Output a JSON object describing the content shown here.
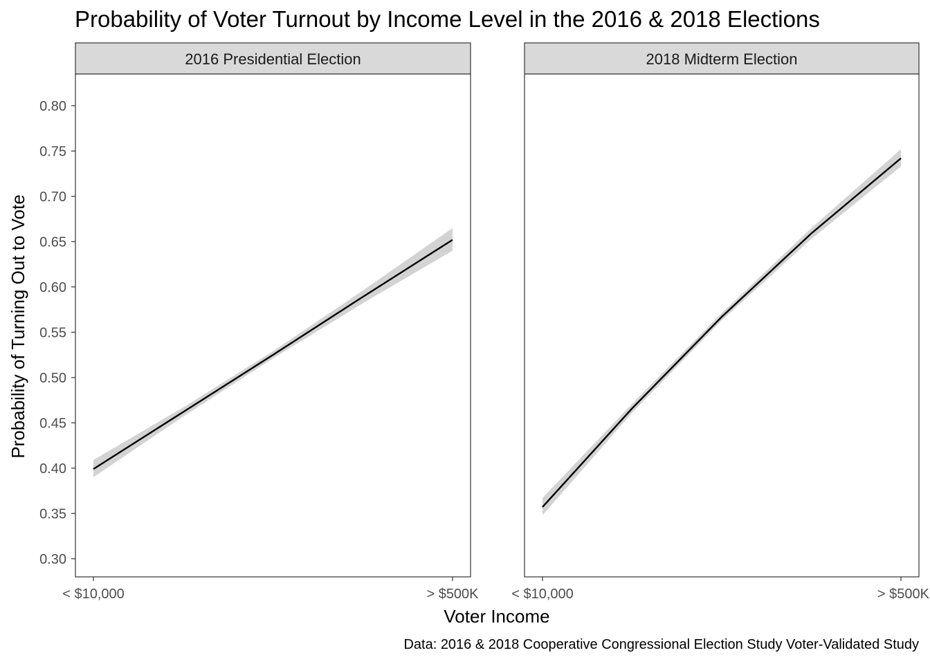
{
  "title": "Probability of Voter Turnout by Income Level in the 2016 & 2018 Elections",
  "caption": "Data: 2016 & 2018 Cooperative Congressional Election Study Voter-Validated Study",
  "chart_data": {
    "type": "line",
    "title": "Probability of Voter Turnout by Income Level in the 2016 & 2018 Elections",
    "xlabel": "Voter Income",
    "ylabel": "Probability of Turning Out to Vote",
    "x_tick_labels": [
      "< $10,000",
      "> $500K"
    ],
    "y_ticks": [
      "0.30",
      "0.35",
      "0.40",
      "0.45",
      "0.50",
      "0.55",
      "0.60",
      "0.65",
      "0.70",
      "0.75",
      "0.80"
    ],
    "ylim": [
      0.28,
      0.835
    ],
    "grid": false,
    "confidence_band": true,
    "facets": [
      {
        "label": "2016 Presidential Election",
        "x": [
          0,
          0.25,
          0.5,
          0.75,
          1
        ],
        "y": [
          0.399,
          0.462,
          0.525,
          0.589,
          0.652
        ],
        "lower": [
          0.39,
          0.457,
          0.521,
          0.582,
          0.64
        ],
        "upper": [
          0.409,
          0.467,
          0.529,
          0.596,
          0.665
        ]
      },
      {
        "label": "2018 Midterm Election",
        "x": [
          0,
          0.25,
          0.5,
          0.75,
          1
        ],
        "y": [
          0.357,
          0.466,
          0.567,
          0.659,
          0.742
        ],
        "lower": [
          0.348,
          0.461,
          0.563,
          0.653,
          0.733
        ],
        "upper": [
          0.367,
          0.471,
          0.571,
          0.665,
          0.752
        ]
      }
    ]
  },
  "colors": {
    "line": "#000000",
    "band": "#d3d3d3",
    "strip_fill": "#d9d9d9",
    "panel_border": "#333333"
  }
}
